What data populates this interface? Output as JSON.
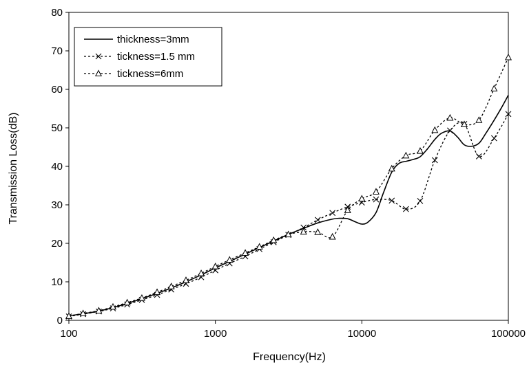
{
  "chart_data": {
    "type": "line",
    "xscale": "log",
    "xlabel": "Frequency(Hz)",
    "ylabel": "Transmission Loss(dB)",
    "xlim": [
      100,
      100000
    ],
    "ylim": [
      0,
      80
    ],
    "xticks": [
      100,
      1000,
      10000,
      100000
    ],
    "yticks": [
      0,
      10,
      20,
      30,
      40,
      50,
      60,
      70,
      80
    ],
    "grid": false,
    "legend": "top-left",
    "series": [
      {
        "name": "thickness=3mm",
        "line": "solid",
        "marker": "none",
        "x": [
          100,
          125,
          160,
          200,
          250,
          315,
          400,
          500,
          630,
          800,
          1000,
          1250,
          1600,
          2000,
          2500,
          3150,
          4000,
          5000,
          6300,
          7000,
          8000,
          9000,
          10000,
          11000,
          12500,
          14000,
          16000,
          18000,
          20000,
          22500,
          25000,
          28000,
          31500,
          35000,
          40000,
          45000,
          50000,
          56000,
          63000,
          70000,
          80000,
          90000,
          100000
        ],
        "y": [
          1.2,
          1.7,
          2.4,
          3.3,
          4.4,
          5.6,
          7.0,
          8.4,
          10.0,
          11.8,
          13.6,
          15.3,
          17.2,
          18.9,
          20.6,
          22.3,
          23.9,
          25.3,
          26.3,
          26.5,
          26.4,
          25.6,
          25.0,
          25.5,
          28.0,
          33.0,
          38.5,
          40.8,
          41.3,
          41.8,
          42.5,
          44.5,
          47.0,
          48.6,
          49.2,
          47.6,
          45.6,
          45.2,
          46.0,
          48.5,
          52.0,
          55.3,
          58.5
        ]
      },
      {
        "name": "tickness=1.5 mm",
        "line": "dashed",
        "marker": "x",
        "x": [
          100,
          125,
          160,
          200,
          250,
          315,
          400,
          500,
          630,
          800,
          1000,
          1250,
          1600,
          2000,
          2500,
          3150,
          4000,
          5000,
          6300,
          8000,
          10000,
          12500,
          16000,
          20000,
          25000,
          31500,
          40000,
          50000,
          63000,
          80000,
          100000
        ],
        "y": [
          1.0,
          1.6,
          2.3,
          3.1,
          4.1,
          5.3,
          6.6,
          8.0,
          9.5,
          11.2,
          13.0,
          14.8,
          16.6,
          18.5,
          20.3,
          22.2,
          24.1,
          26.1,
          27.9,
          29.5,
          30.6,
          31.4,
          31.1,
          28.9,
          31.0,
          41.6,
          49.3,
          51.0,
          42.6,
          47.3,
          53.6
        ]
      },
      {
        "name": "tickness=6mm",
        "line": "dashed",
        "marker": "triangle",
        "x": [
          100,
          125,
          160,
          200,
          250,
          315,
          400,
          500,
          630,
          800,
          1000,
          1250,
          1600,
          2000,
          2500,
          3150,
          4000,
          5000,
          6300,
          8000,
          10000,
          12500,
          16000,
          20000,
          25000,
          31500,
          40000,
          50000,
          63000,
          80000,
          100000
        ],
        "y": [
          1.1,
          1.8,
          2.5,
          3.5,
          4.6,
          5.8,
          7.3,
          8.8,
          10.4,
          12.2,
          14.0,
          15.7,
          17.5,
          19.1,
          20.8,
          22.3,
          23.0,
          22.9,
          21.7,
          28.6,
          31.6,
          33.4,
          39.4,
          42.8,
          44.0,
          49.4,
          52.6,
          50.9,
          52.0,
          60.2,
          68.3
        ]
      }
    ]
  }
}
